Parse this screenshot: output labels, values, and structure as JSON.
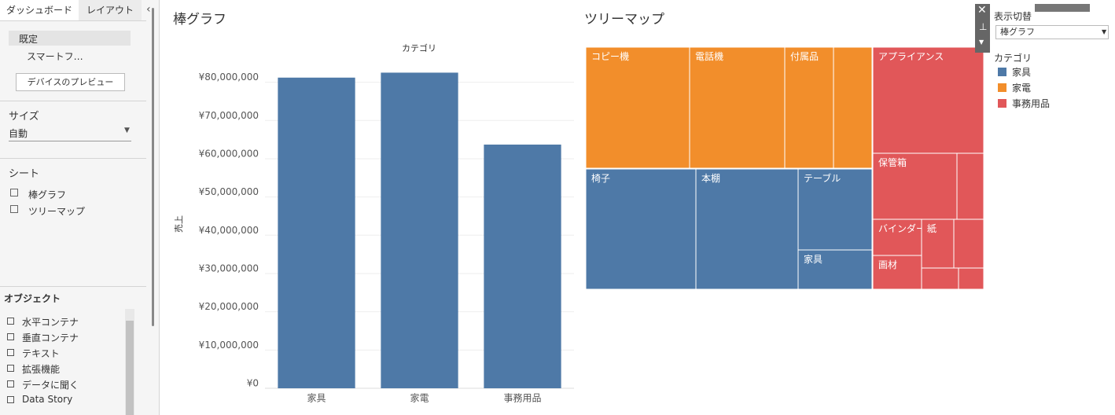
{
  "sidebar": {
    "tabs": [
      "ダッシュボード",
      "レイアウト"
    ],
    "device": {
      "items": [
        "既定",
        "スマートフ…"
      ],
      "preview_button": "デバイスのプレビュー"
    },
    "size": {
      "title": "サイズ",
      "value": "自動"
    },
    "sheets": {
      "title": "シート",
      "items": [
        "棒グラフ",
        "ツリーマップ"
      ]
    },
    "objects": {
      "title": "オブジェクト",
      "items": [
        "水平コンテナ",
        "垂直コンテナ",
        "テキスト",
        "拡張機能",
        "データに聞く",
        "Data Story"
      ]
    }
  },
  "chart_data": {
    "type": "bar",
    "title": "棒グラフ",
    "column_header": "カテゴリ",
    "y_label": "売上",
    "categories": [
      "家具",
      "家電",
      "事務用品"
    ],
    "values": [
      81200000,
      82500000,
      63700000
    ],
    "color": "#4e79a7",
    "ylim": [
      0,
      83000000
    ],
    "yticks": [
      {
        "value": 0,
        "label": "¥0"
      },
      {
        "value": 10000000,
        "label": "¥10,000,000"
      },
      {
        "value": 20000000,
        "label": "¥20,000,000"
      },
      {
        "value": 30000000,
        "label": "¥30,000,000"
      },
      {
        "value": 40000000,
        "label": "¥40,000,000"
      },
      {
        "value": 50000000,
        "label": "¥50,000,000"
      },
      {
        "value": 60000000,
        "label": "¥60,000,000"
      },
      {
        "value": 70000000,
        "label": "¥70,000,000"
      },
      {
        "value": 80000000,
        "label": "¥80,000,000"
      }
    ],
    "grid": true
  },
  "treemap": {
    "title": "ツリーマップ",
    "labels": [
      "コピー機",
      "電話機",
      "付属品",
      "椅子",
      "本棚",
      "テーブル",
      "家具",
      "アプライアンス",
      "保管箱",
      "バインダー",
      "紙",
      "画材"
    ]
  },
  "legend_panel": {
    "filter_title": "表示切替",
    "filter_value": "棒グラフ",
    "legend_title": "カテゴリ",
    "items": [
      {
        "name": "家具",
        "color": "#4e79a7"
      },
      {
        "name": "家電",
        "color": "#f28e2b"
      },
      {
        "name": "事務用品",
        "color": "#e15759"
      }
    ]
  }
}
